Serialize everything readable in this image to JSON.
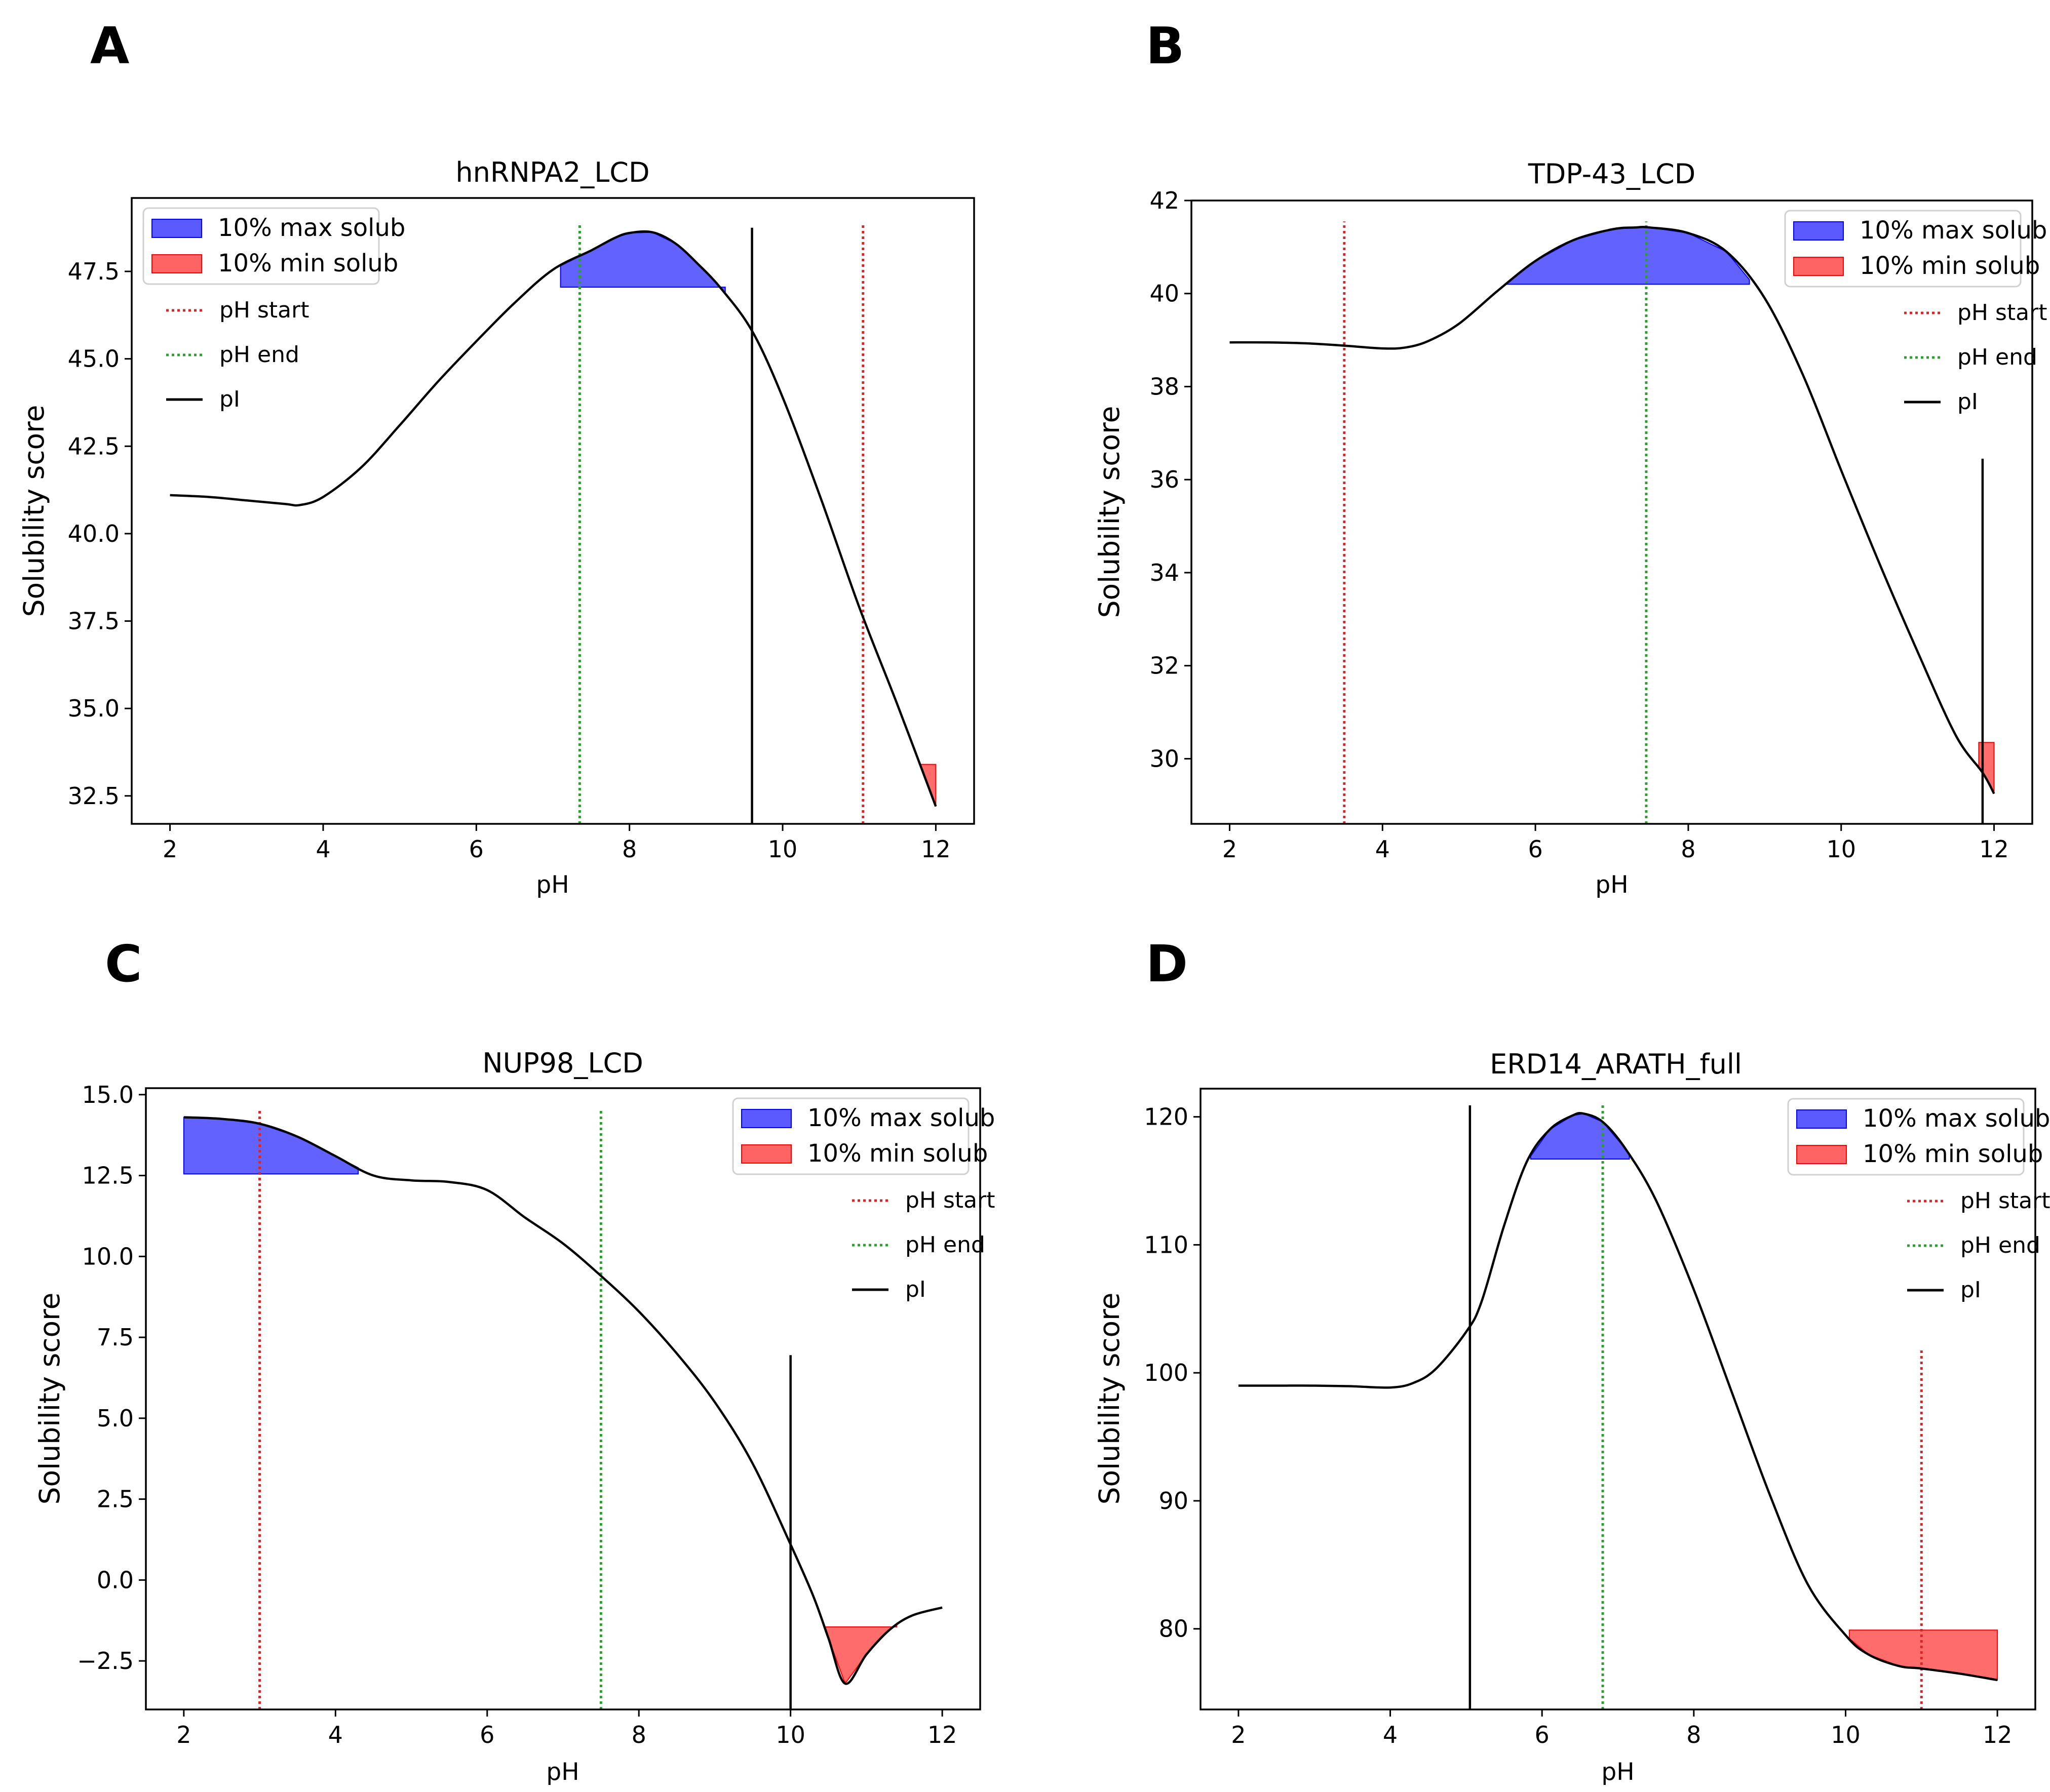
{
  "figure": {
    "panel_letters": [
      "A",
      "B",
      "C",
      "D"
    ]
  },
  "legend": {
    "max_solub": "10% max solub",
    "min_solub": "10% min solub",
    "ph_start": "pH start",
    "ph_end": "pH end",
    "pi": "pI"
  },
  "colors": {
    "curve": "#000000",
    "max_fill": "#5a5aff",
    "max_edge": "#0000ff",
    "min_fill": "#ff6464",
    "min_edge": "#ff0000",
    "ph_start": "#d62728",
    "ph_end": "#2ca02c",
    "pi_line": "#000000"
  },
  "chart_data": [
    {
      "panel": "A",
      "type": "line",
      "title": "hnRNPA2_LCD",
      "xlabel": "pH",
      "ylabel": "Solubility score",
      "xlim": [
        1.5,
        12.5
      ],
      "ylim": [
        31.7,
        49.6
      ],
      "xticks": [
        2,
        4,
        6,
        8,
        10,
        12
      ],
      "xtick_labels": [
        "2",
        "4",
        "6",
        "8",
        "10",
        "12"
      ],
      "yticks": [
        32.5,
        35.0,
        37.5,
        40.0,
        42.5,
        45.0,
        47.5
      ],
      "ytick_labels": [
        "32.5",
        "35.0",
        "37.5",
        "40.0",
        "42.5",
        "45.0",
        "47.5"
      ],
      "legend_position": "upper-left",
      "x": [
        2.0,
        2.5,
        3.0,
        3.5,
        3.7,
        4.0,
        4.5,
        5.0,
        5.5,
        6.0,
        6.5,
        7.0,
        7.5,
        7.8,
        8.0,
        8.3,
        8.6,
        8.9,
        9.2,
        9.6,
        10.0,
        10.5,
        11.0,
        11.5,
        12.0
      ],
      "y": [
        41.1,
        41.05,
        40.95,
        40.85,
        40.82,
        41.05,
        41.9,
        43.1,
        44.35,
        45.5,
        46.6,
        47.55,
        48.1,
        48.45,
        48.6,
        48.62,
        48.3,
        47.7,
        47.0,
        45.8,
        43.9,
        41.0,
        37.9,
        35.1,
        32.2
      ],
      "max_region": {
        "x_start": 7.1,
        "x_end": 9.25,
        "threshold": 47.05
      },
      "min_region": {
        "x_start": 11.8,
        "x_end": 12.0,
        "threshold": 33.4
      },
      "ph_start": {
        "x": 11.05,
        "y_top": 48.85
      },
      "ph_end": {
        "x": 7.35,
        "y_top": 48.85
      },
      "pi": {
        "x": 9.6,
        "y_top": 48.75
      }
    },
    {
      "panel": "B",
      "type": "line",
      "title": "TDP-43_LCD",
      "xlabel": "pH",
      "ylabel": "Solubility score",
      "xlim": [
        1.5,
        12.5
      ],
      "ylim": [
        28.6,
        42.0
      ],
      "xticks": [
        2,
        4,
        6,
        8,
        10,
        12
      ],
      "xtick_labels": [
        "2",
        "4",
        "6",
        "8",
        "10",
        "12"
      ],
      "yticks": [
        30,
        32,
        34,
        36,
        38,
        40,
        42
      ],
      "ytick_labels": [
        "30",
        "32",
        "34",
        "36",
        "38",
        "40",
        "42"
      ],
      "legend_position": "upper-right",
      "x": [
        2.0,
        2.5,
        3.0,
        3.5,
        4.0,
        4.3,
        4.6,
        5.0,
        5.5,
        6.0,
        6.5,
        7.0,
        7.3,
        7.5,
        8.0,
        8.5,
        9.0,
        9.5,
        10.0,
        10.5,
        11.0,
        11.5,
        11.85,
        12.0
      ],
      "y": [
        38.95,
        38.95,
        38.93,
        38.88,
        38.82,
        38.84,
        38.98,
        39.35,
        40.05,
        40.7,
        41.15,
        41.38,
        41.42,
        41.42,
        41.3,
        40.9,
        39.9,
        38.25,
        36.2,
        34.2,
        32.3,
        30.5,
        29.7,
        29.25
      ],
      "max_region": {
        "x_start": 5.6,
        "x_end": 8.8,
        "threshold": 40.2
      },
      "min_region": {
        "x_start": 11.8,
        "x_end": 12.0,
        "threshold": 30.35
      },
      "ph_start": {
        "x": 3.5,
        "y_top": 41.55
      },
      "ph_end": {
        "x": 7.45,
        "y_top": 41.55
      },
      "pi": {
        "x": 11.85,
        "y_top": 36.45
      }
    },
    {
      "panel": "C",
      "type": "line",
      "title": "NUP98_LCD",
      "xlabel": "pH",
      "ylabel": "Solubility score",
      "xlim": [
        1.5,
        12.5
      ],
      "ylim": [
        -4.0,
        15.2
      ],
      "xticks": [
        2,
        4,
        6,
        8,
        10,
        12
      ],
      "xtick_labels": [
        "2",
        "4",
        "6",
        "8",
        "10",
        "12"
      ],
      "yticks": [
        -2.5,
        0.0,
        2.5,
        5.0,
        7.5,
        10.0,
        12.5,
        15.0
      ],
      "ytick_labels": [
        "−2.5",
        "0.0",
        "2.5",
        "5.0",
        "7.5",
        "10.0",
        "12.5",
        "15.0"
      ],
      "legend_position": "upper-right",
      "x": [
        2.0,
        2.5,
        3.0,
        3.5,
        4.0,
        4.5,
        5.0,
        5.5,
        6.0,
        6.5,
        7.0,
        7.5,
        8.0,
        8.5,
        9.0,
        9.5,
        10.0,
        10.3,
        10.5,
        10.72,
        11.0,
        11.3,
        11.6,
        12.0
      ],
      "y": [
        14.3,
        14.25,
        14.1,
        13.7,
        13.1,
        12.5,
        12.35,
        12.3,
        12.05,
        11.2,
        10.4,
        9.4,
        8.3,
        7.0,
        5.5,
        3.6,
        1.1,
        -0.5,
        -1.8,
        -3.2,
        -2.3,
        -1.55,
        -1.1,
        -0.85
      ],
      "max_region": {
        "x_start": 2.0,
        "x_end": 4.3,
        "threshold": 12.55
      },
      "min_region": {
        "x_start": 10.45,
        "x_end": 11.4,
        "threshold": -1.45
      },
      "ph_start": {
        "x": 3.0,
        "y_top": 14.55
      },
      "ph_end": {
        "x": 7.5,
        "y_top": 14.55
      },
      "pi": {
        "x": 10.0,
        "y_top": 6.95
      }
    },
    {
      "panel": "D",
      "type": "line",
      "title": "ERD14_ARATH_full",
      "xlabel": "pH",
      "ylabel": "Solubility score",
      "xlim": [
        1.5,
        12.5
      ],
      "ylim": [
        73.7,
        122.2
      ],
      "xticks": [
        2,
        4,
        6,
        8,
        10,
        12
      ],
      "xtick_labels": [
        "2",
        "4",
        "6",
        "8",
        "10",
        "12"
      ],
      "yticks": [
        80,
        90,
        100,
        110,
        120
      ],
      "ytick_labels": [
        "80",
        "90",
        "100",
        "110",
        "120"
      ],
      "legend_position": "upper-right",
      "x": [
        2.0,
        2.5,
        3.0,
        3.5,
        4.0,
        4.3,
        4.6,
        5.0,
        5.2,
        5.5,
        5.8,
        6.1,
        6.4,
        6.55,
        6.8,
        7.1,
        7.5,
        8.0,
        8.5,
        9.0,
        9.5,
        10.0,
        10.3,
        10.7,
        11.0,
        11.5,
        12.0
      ],
      "y": [
        99.0,
        99.0,
        99.0,
        98.95,
        98.85,
        99.2,
        100.3,
        103.2,
        105.5,
        111.5,
        116.5,
        119.0,
        120.1,
        120.25,
        119.6,
        117.5,
        113.5,
        106.5,
        98.5,
        90.5,
        83.5,
        79.5,
        78.0,
        77.1,
        76.9,
        76.5,
        76.0
      ],
      "max_region": {
        "x_start": 5.85,
        "x_end": 7.15,
        "threshold": 116.7
      },
      "min_region": {
        "x_start": 10.05,
        "x_end": 12.0,
        "threshold": 79.9
      },
      "ph_start": {
        "x": 11.0,
        "y_top": 101.8
      },
      "ph_end": {
        "x": 6.8,
        "y_top": 120.9
      },
      "pi": {
        "x": 5.05,
        "y_top": 120.9
      }
    }
  ]
}
